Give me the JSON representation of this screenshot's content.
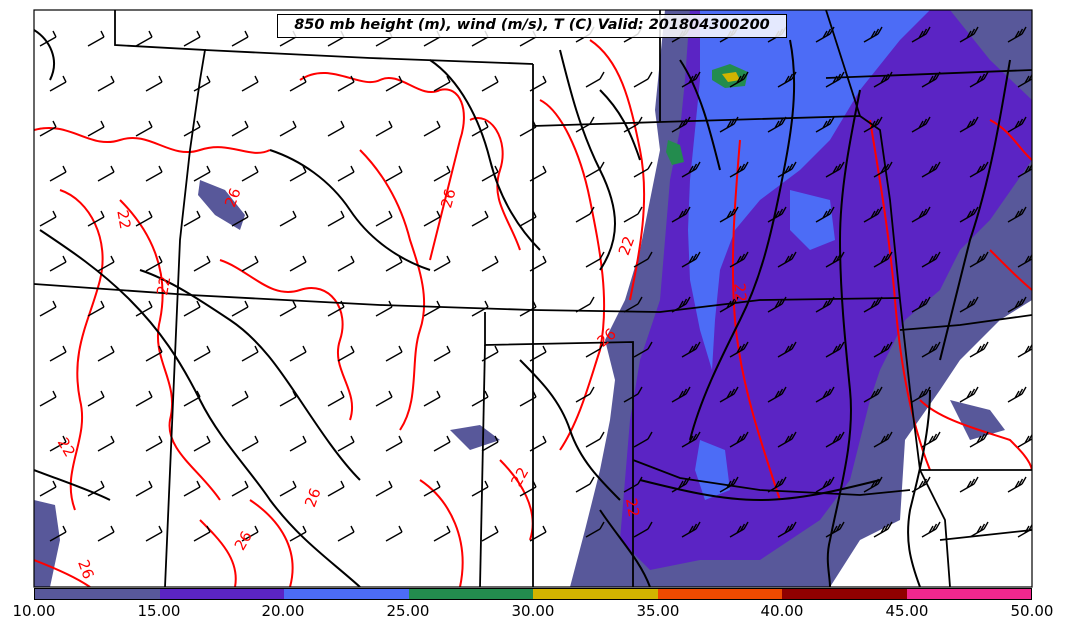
{
  "title": "850 mb height (m), wind (m/s), T (C) Valid: 201804300200",
  "map": {
    "region": "Southwestern / central United States",
    "fill_variable_colors": {
      "10-15": "#58589a",
      "15-20": "#5b24c4",
      "20-25": "#4c6cf6",
      "25-30": "#238c4e",
      "30-35": "#d2b400",
      "35-40": "#ef4a00",
      "40-45": "#900000",
      "45-50": "#f0278e"
    },
    "contour_color_temperature": "#ff0000",
    "contour_color_height": "#000000",
    "temperature_contour_labels": [
      "22",
      "26",
      "26",
      "22",
      "22",
      "22",
      "26",
      "26",
      "26",
      "22",
      "22",
      "26",
      "22"
    ]
  },
  "colorbar": {
    "colors": [
      "#58589a",
      "#5b24c4",
      "#4c6cf6",
      "#238c4e",
      "#d2b400",
      "#ef4a00",
      "#900000",
      "#f0278e"
    ],
    "ticks": [
      "10.00",
      "15.00",
      "20.00",
      "25.00",
      "30.00",
      "35.00",
      "40.00",
      "45.00",
      "50.00"
    ]
  }
}
